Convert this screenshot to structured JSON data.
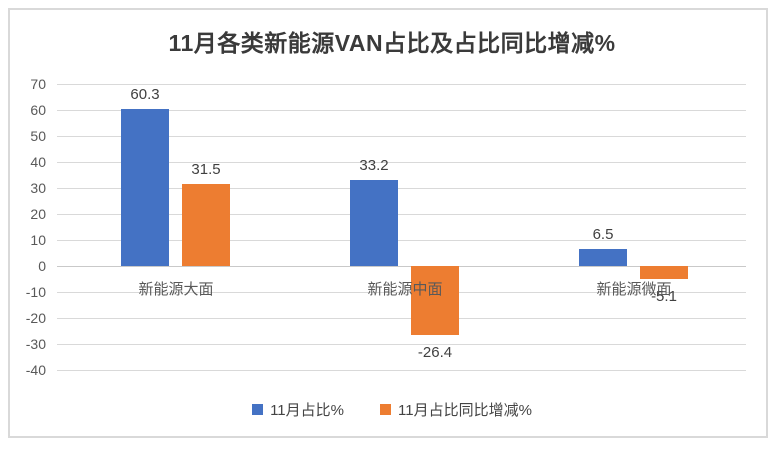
{
  "chart_data": {
    "type": "bar",
    "title": "11月各类新能源VAN占比及占比同比增减%",
    "categories": [
      "新能源大面",
      "新能源中面",
      "新能源微面"
    ],
    "series": [
      {
        "name": "11月占比%",
        "color": "#4472C4",
        "values": [
          60.3,
          33.2,
          6.5
        ]
      },
      {
        "name": "11月占比同比增减%",
        "color": "#ED7D31",
        "values": [
          31.5,
          -26.4,
          -5.1
        ]
      }
    ],
    "ylim": [
      -40,
      70
    ],
    "yticks": [
      70,
      60,
      50,
      40,
      30,
      20,
      10,
      0,
      -10,
      -20,
      -30,
      -40
    ],
    "grid": "horizontal",
    "legend_position": "bottom",
    "data_labels": true
  },
  "styles": {
    "grid_color": "#D9D9D9",
    "zero_line_color": "#C9C9C9",
    "axis_label_color": "#595959",
    "data_label_color": "#404040",
    "category_label_color": "#595959",
    "title_color": "#3A3A3A",
    "frame_border_color": "#D9D9D9"
  }
}
